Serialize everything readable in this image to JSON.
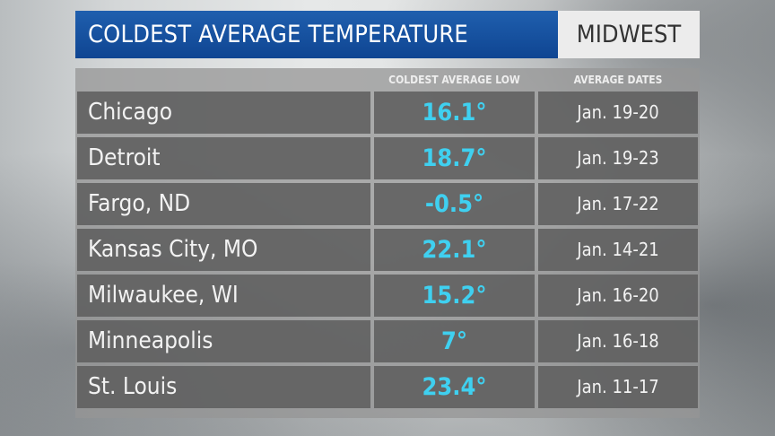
{
  "title": "COLDEST AVERAGE TEMPERATURE",
  "region": "MIDWEST",
  "colors": {
    "title_bar": "#1552a0",
    "value_text": "#3fd0f0"
  },
  "chart_data": {
    "type": "table",
    "title": "COLDEST AVERAGE TEMPERATURE",
    "subtitle": "MIDWEST",
    "columns": [
      "",
      "COLDEST AVERAGE LOW",
      "AVERAGE DATES"
    ],
    "rows": [
      {
        "city": "Chicago",
        "low": "16.1°",
        "dates": "Jan. 19-20"
      },
      {
        "city": "Detroit",
        "low": "18.7°",
        "dates": "Jan. 19-23"
      },
      {
        "city": "Fargo, ND",
        "low": "-0.5°",
        "dates": "Jan. 17-22"
      },
      {
        "city": "Kansas City, MO",
        "low": "22.1°",
        "dates": "Jan. 14-21"
      },
      {
        "city": "Milwaukee, WI",
        "low": "15.2°",
        "dates": "Jan. 16-20"
      },
      {
        "city": "Minneapolis",
        "low": "7°",
        "dates": "Jan. 16-18"
      },
      {
        "city": "St. Louis",
        "low": "23.4°",
        "dates": "Jan. 11-17"
      }
    ]
  }
}
